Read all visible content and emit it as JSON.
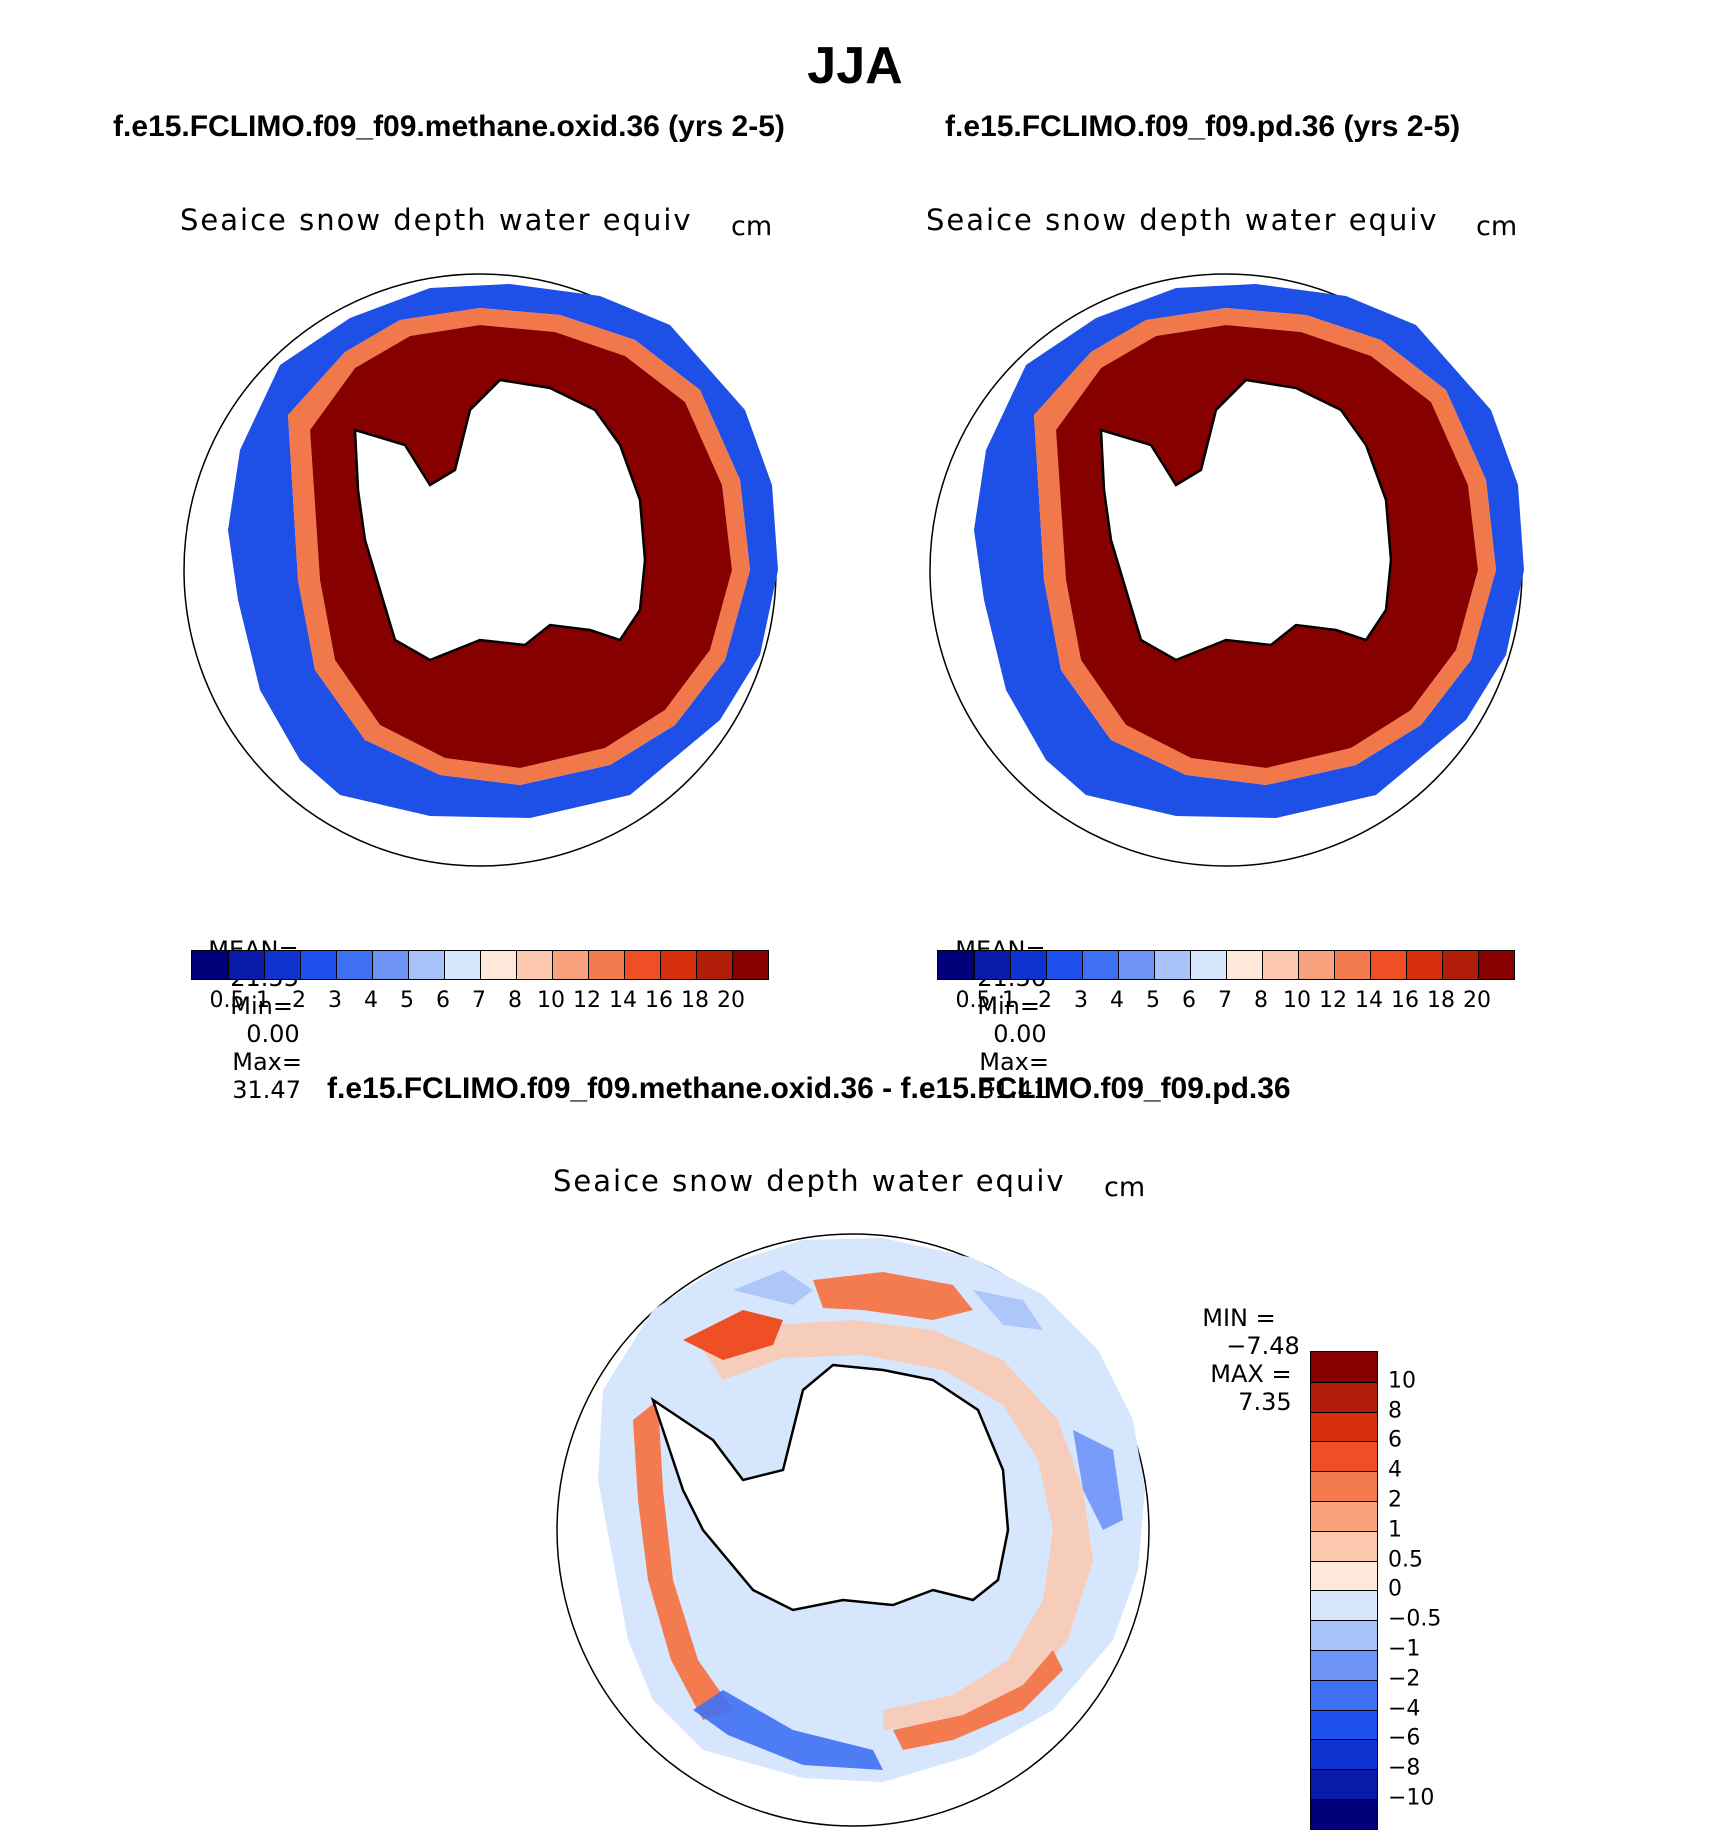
{
  "figure": {
    "title": "JJA"
  },
  "panels": [
    {
      "case_title": "f.e15.FCLIMO.f09_f09.methane.oxid.36 (yrs 2-5)",
      "variable": "Seaice snow depth water equiv",
      "units": "cm",
      "stats": {
        "mean_label": "MEAN=",
        "mean": "21.55",
        "min_label": "Min=",
        "min": "0.00",
        "max_label": "Max=",
        "max": "31.47"
      }
    },
    {
      "case_title": "f.e15.FCLIMO.f09_f09.pd.36 (yrs 2-5)",
      "variable": "Seaice snow depth water equiv",
      "units": "cm",
      "stats": {
        "mean_label": "MEAN=",
        "mean": "21.36",
        "min_label": "Min=",
        "min": "0.00",
        "max_label": "Max=",
        "max": "31.41"
      }
    }
  ],
  "difference": {
    "case_title": "f.e15.FCLIMO.f09_f09.methane.oxid.36 - f.e15.FCLIMO.f09_f09.pd.36",
    "variable": "Seaice snow depth water equiv",
    "units": "cm",
    "stats": {
      "min_label": "MIN =",
      "min": "−7.48",
      "max_label": "MAX =",
      "max": "7.35"
    }
  },
  "colorbars": {
    "absolute": {
      "labels": [
        "0.5",
        "1",
        "2",
        "3",
        "4",
        "5",
        "6",
        "7",
        "8",
        "10",
        "12",
        "14",
        "16",
        "18",
        "20"
      ],
      "colors": [
        "#00007a",
        "#0a1aa8",
        "#0f33d0",
        "#1e50ee",
        "#3f70f4",
        "#6e93f7",
        "#a8c3fa",
        "#d6e6fc",
        "#fde8da",
        "#fcc8ae",
        "#f8a27e",
        "#f47a4f",
        "#ee4f24",
        "#d52f0d",
        "#b01d08",
        "#860000"
      ]
    },
    "difference": {
      "labels": [
        "10",
        "8",
        "6",
        "4",
        "2",
        "1",
        "0.5",
        "0",
        "−0.5",
        "−1",
        "−2",
        "−4",
        "−6",
        "−8",
        "−10"
      ],
      "colors": [
        "#860000",
        "#b01d08",
        "#d52f0d",
        "#ee4f24",
        "#f47a4f",
        "#f8a27e",
        "#fcc8ae",
        "#fde8da",
        "#d6e6fc",
        "#a8c3fa",
        "#6e93f7",
        "#3f70f4",
        "#1e50ee",
        "#0f33d0",
        "#0a1aa8",
        "#00007a"
      ]
    }
  }
}
